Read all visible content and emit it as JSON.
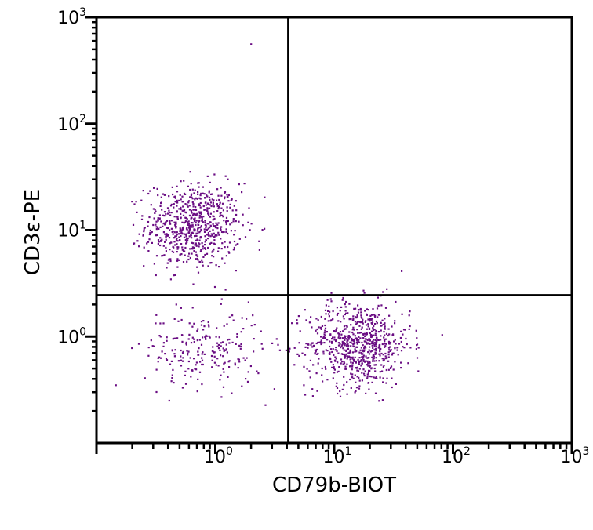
{
  "chart_data": {
    "type": "scatter",
    "subtype": "flow-cytometry-dot-plot",
    "title": "",
    "xlabel": "CD79b-BIOT",
    "ylabel": "CD3ε-PE",
    "xscale": "log",
    "yscale": "log",
    "xlim": [
      0.1,
      1000
    ],
    "ylim": [
      0.1,
      1000
    ],
    "x_tick_labels": [
      {
        "value": 1,
        "base": "10",
        "exp": "0"
      },
      {
        "value": 10,
        "base": "10",
        "exp": "1"
      },
      {
        "value": 100,
        "base": "10",
        "exp": "2"
      },
      {
        "value": 1000,
        "base": "10",
        "exp": "3"
      }
    ],
    "y_tick_labels": [
      {
        "value": 1,
        "base": "10",
        "exp": "0"
      },
      {
        "value": 10,
        "base": "10",
        "exp": "1"
      },
      {
        "value": 100,
        "base": "10",
        "exp": "2"
      },
      {
        "value": 1000,
        "base": "10",
        "exp": "3"
      }
    ],
    "grid": false,
    "legend": "none",
    "point_color": "#6a0d83",
    "quadrant_gates": {
      "x": 4.1,
      "y": 2.45
    },
    "populations": [
      {
        "center": [
          0.65,
          11
        ],
        "log10_spread": [
          0.2,
          0.2
        ],
        "count": 700
      },
      {
        "center": [
          16,
          0.85
        ],
        "log10_spread": [
          0.22,
          0.2
        ],
        "count": 750
      },
      {
        "center": [
          0.8,
          0.75
        ],
        "log10_spread": [
          0.25,
          0.18
        ],
        "count": 230
      }
    ],
    "points": [
      {
        "x": 2.0,
        "y": 560
      }
    ]
  }
}
